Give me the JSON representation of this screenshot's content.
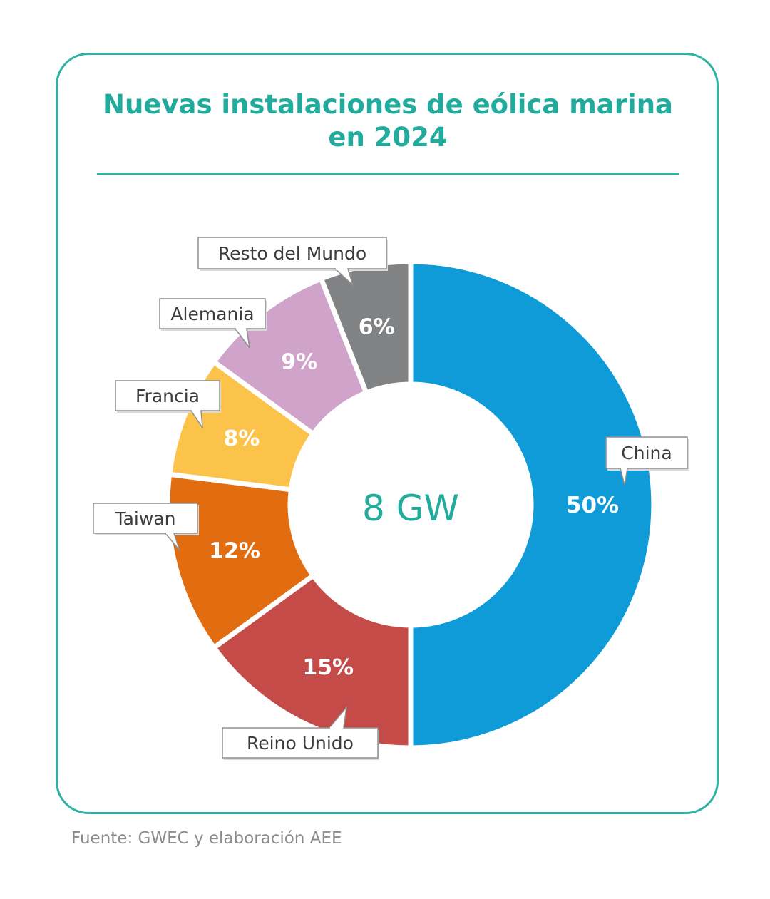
{
  "title": {
    "line1": "Nuevas instalaciones de eólica marina",
    "line2": "en 2024"
  },
  "center_label": "8 GW",
  "source": "Fuente: GWEC y elaboración AEE",
  "colors": {
    "accent": "#20ab9c",
    "China": "#0f9ad8",
    "Reino Unido": "#c44b47",
    "Taiwan": "#e26c10",
    "Francia": "#fcc34a",
    "Alemania": "#d0a3cb",
    "Resto del Mundo": "#818284"
  },
  "chart_data": {
    "type": "pie",
    "title": "Nuevas instalaciones de eólica marina en 2024",
    "center_text": "8 GW",
    "slices": [
      {
        "label": "China",
        "value": 50,
        "value_label": "50%"
      },
      {
        "label": "Reino Unido",
        "value": 15,
        "value_label": "15%"
      },
      {
        "label": "Taiwan",
        "value": 12,
        "value_label": "12%"
      },
      {
        "label": "Francia",
        "value": 8,
        "value_label": "8%"
      },
      {
        "label": "Alemania",
        "value": 9,
        "value_label": "9%"
      },
      {
        "label": "Resto del Mundo",
        "value": 6,
        "value_label": "6%"
      }
    ]
  }
}
